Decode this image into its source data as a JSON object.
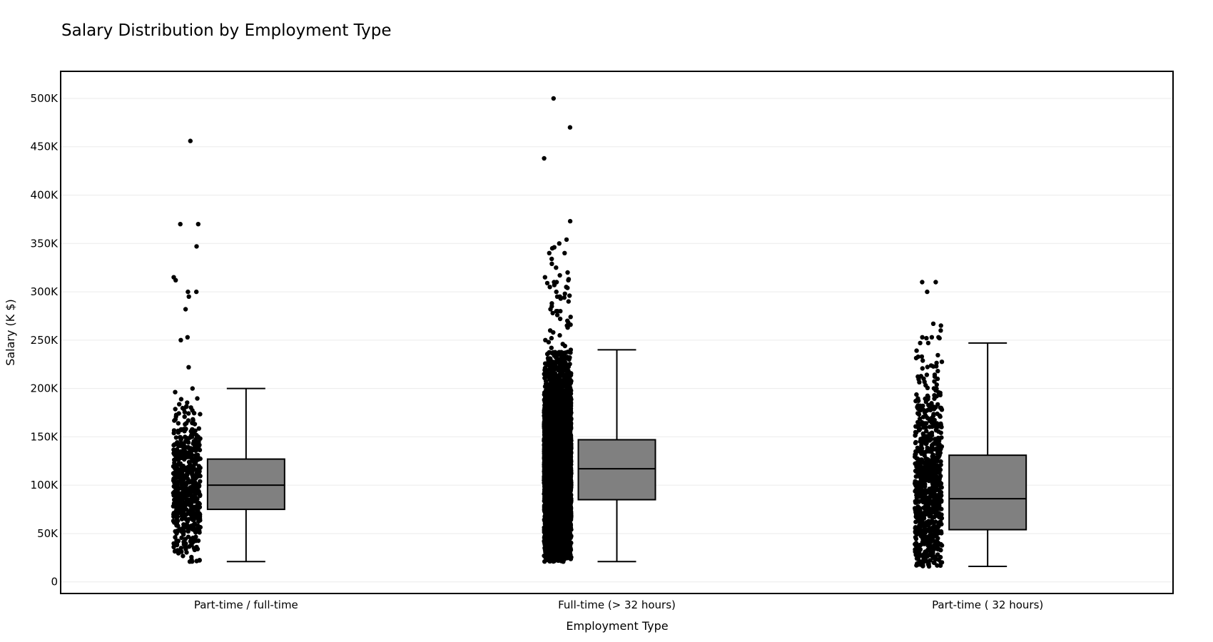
{
  "chart_data": {
    "type": "box",
    "title": "Salary Distribution by Employment Type",
    "xlabel": "Employment Type",
    "ylabel": "Salary (K $)",
    "ylim": [
      -12000,
      528000
    ],
    "yticks": [
      {
        "value": 0,
        "label": "0"
      },
      {
        "value": 50000,
        "label": "50K"
      },
      {
        "value": 100000,
        "label": "100K"
      },
      {
        "value": 150000,
        "label": "150K"
      },
      {
        "value": 200000,
        "label": "200K"
      },
      {
        "value": 250000,
        "label": "250K"
      },
      {
        "value": 300000,
        "label": "300K"
      },
      {
        "value": 350000,
        "label": "350K"
      },
      {
        "value": 400000,
        "label": "400K"
      },
      {
        "value": 450000,
        "label": "450K"
      },
      {
        "value": 500000,
        "label": "500K"
      }
    ],
    "grid": true,
    "box_color": "#808080",
    "point_color": "#000000",
    "categories": [
      "Part-time / full-time",
      "Full-time (> 32 hours)",
      "Part-time ( 32 hours)"
    ],
    "series": [
      {
        "category": "Part-time / full-time",
        "box": {
          "lower_whisker": 21000,
          "q1": 75000,
          "median": 100000,
          "q3": 127000,
          "upper_whisker": 200000
        },
        "point_count": 600,
        "point_range": [
          21000,
          200000
        ],
        "outliers": [
          456000,
          370000,
          370000,
          347000,
          315000,
          312000,
          300000,
          300000,
          295000,
          282000,
          253000,
          250000,
          222000
        ]
      },
      {
        "category": "Full-time (> 32 hours)",
        "box": {
          "lower_whisker": 21000,
          "q1": 85000,
          "median": 117000,
          "q3": 147000,
          "upper_whisker": 240000
        },
        "point_count": 6000,
        "point_range": [
          21000,
          240000
        ],
        "outliers": [
          500000,
          470000,
          438000,
          373000,
          354000,
          350000,
          346000,
          345000,
          340000,
          340000,
          334000,
          329000,
          325000,
          320000,
          317000,
          315000,
          313000,
          312000,
          310000,
          310000,
          309000,
          307000,
          305000,
          305000,
          304000,
          300000,
          298000,
          296000,
          295000,
          295000,
          294000,
          293000,
          290000,
          288000,
          285000,
          282000,
          280000,
          280000,
          280000,
          278000,
          276000,
          274000,
          272000,
          270000,
          268000,
          266000,
          265000,
          263000,
          260000,
          258000,
          255000,
          252000,
          250000,
          248000,
          246000,
          244000,
          242000
        ]
      },
      {
        "category": "Part-time ( 32 hours)",
        "box": {
          "lower_whisker": 16000,
          "q1": 54000,
          "median": 86000,
          "q3": 131000,
          "upper_whisker": 247000
        },
        "point_count": 800,
        "point_range": [
          16000,
          247000
        ],
        "outliers": [
          310000,
          310000,
          300000,
          267000,
          265000,
          260000,
          253000,
          253000,
          253000,
          252000,
          252000,
          247000
        ]
      }
    ]
  }
}
